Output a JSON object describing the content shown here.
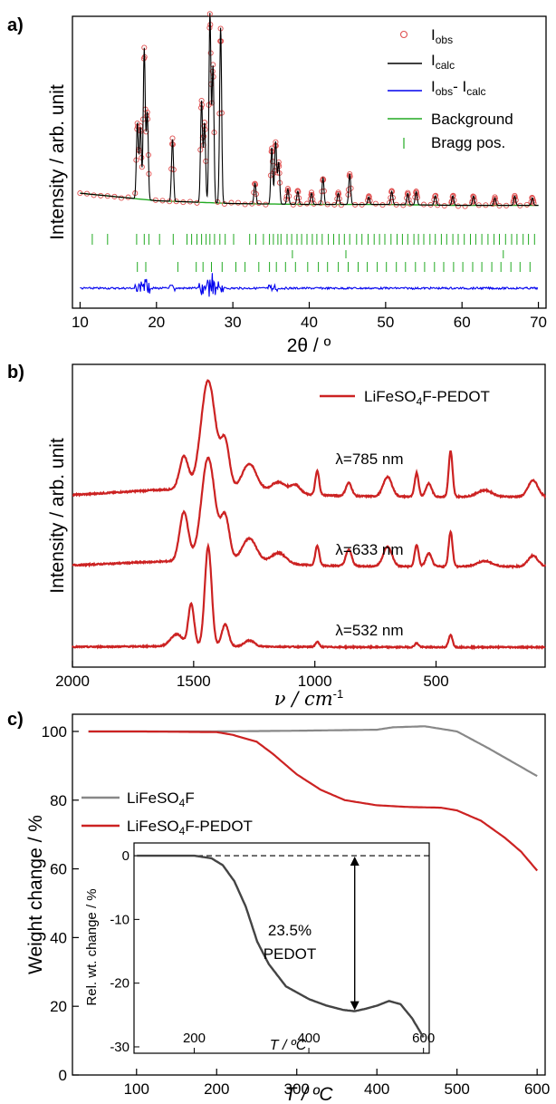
{
  "chart_data": [
    {
      "panel": "a)",
      "type": "line",
      "xlabel": "2θ / º",
      "ylabel": "Intensity / arb. unit",
      "xlim": [
        9,
        71
      ],
      "x_ticks": [
        10,
        20,
        30,
        40,
        50,
        60,
        70
      ],
      "legend_position": "top-right",
      "legend": [
        {
          "name": "I",
          "sub": "obs",
          "marker": "open-circle",
          "color": "#e05050"
        },
        {
          "name": "I",
          "sub": "calc",
          "marker": "line",
          "color": "#000000"
        },
        {
          "name": "I",
          "sub": "obs",
          "mid": "- I",
          "sub2": "calc",
          "marker": "line",
          "color": "#0000ee"
        },
        {
          "name": "Background",
          "marker": "line",
          "color": "#22aa22"
        },
        {
          "name": "Bragg pos.",
          "marker": "tick",
          "color": "#22aa22"
        }
      ],
      "peaks": [
        {
          "x": 17.5,
          "h": 0.4
        },
        {
          "x": 17.9,
          "h": 0.38
        },
        {
          "x": 18.4,
          "h": 0.8
        },
        {
          "x": 18.8,
          "h": 0.46
        },
        {
          "x": 22.1,
          "h": 0.33
        },
        {
          "x": 25.9,
          "h": 0.54
        },
        {
          "x": 26.3,
          "h": 0.42
        },
        {
          "x": 27.0,
          "h": 1.0
        },
        {
          "x": 27.4,
          "h": 0.72
        },
        {
          "x": 28.4,
          "h": 0.93
        },
        {
          "x": 32.9,
          "h": 0.11
        },
        {
          "x": 35.1,
          "h": 0.3
        },
        {
          "x": 35.6,
          "h": 0.33
        },
        {
          "x": 36.0,
          "h": 0.22
        },
        {
          "x": 37.2,
          "h": 0.08
        },
        {
          "x": 38.5,
          "h": 0.07
        },
        {
          "x": 40.3,
          "h": 0.06
        },
        {
          "x": 41.8,
          "h": 0.14
        },
        {
          "x": 43.8,
          "h": 0.06
        },
        {
          "x": 45.3,
          "h": 0.16
        },
        {
          "x": 47.8,
          "h": 0.04
        },
        {
          "x": 50.8,
          "h": 0.07
        },
        {
          "x": 52.9,
          "h": 0.06
        },
        {
          "x": 54.0,
          "h": 0.07
        },
        {
          "x": 56.5,
          "h": 0.05
        },
        {
          "x": 58.8,
          "h": 0.05
        },
        {
          "x": 61.5,
          "h": 0.05
        },
        {
          "x": 64.3,
          "h": 0.04
        },
        {
          "x": 66.9,
          "h": 0.05
        },
        {
          "x": 69.2,
          "h": 0.04
        }
      ],
      "background": [
        [
          10,
          0.11
        ],
        [
          20,
          0.07
        ],
        [
          30,
          0.055
        ],
        [
          40,
          0.05
        ],
        [
          50,
          0.05
        ],
        [
          60,
          0.045
        ],
        [
          70,
          0.045
        ]
      ],
      "bragg_rows": [
        [
          11.6,
          13.6,
          17.4,
          18.4,
          19.0,
          20.4,
          22.2,
          24.0,
          24.6,
          25.3,
          25.9,
          26.5,
          27.0,
          27.6,
          28.3,
          29.0,
          30.1,
          32.2,
          33.0,
          34.0,
          34.8,
          35.3,
          35.9,
          36.3,
          37.1,
          37.7,
          38.4,
          39.0,
          39.7,
          40.4,
          41.0,
          41.7,
          42.5,
          43.2,
          43.9,
          44.6,
          45.3,
          46.2,
          46.9,
          47.7,
          48.5,
          49.2,
          49.9,
          50.7,
          51.5,
          52.2,
          52.9,
          53.7,
          54.3,
          55.0,
          55.8,
          56.5,
          57.3,
          58.0,
          58.8,
          59.5,
          60.3,
          61.1,
          61.8,
          62.6,
          63.4,
          64.2,
          64.9,
          65.7,
          66.5,
          67.2,
          68.0,
          68.7,
          69.5
        ],
        [
          37.8,
          44.8,
          65.4
        ],
        [
          17.5,
          18.6,
          22.8,
          25.2,
          26.1,
          27.2,
          28.6,
          30.4,
          31.6,
          33.4,
          34.8,
          35.7,
          36.9,
          38.2,
          39.8,
          41.2,
          42.4,
          43.8,
          45.1,
          46.4,
          47.6,
          48.9,
          50.1,
          51.4,
          52.6,
          53.9,
          55.1,
          56.4,
          57.6,
          58.9,
          60.1,
          61.4,
          62.6,
          63.9,
          65.1,
          66.4,
          67.6,
          68.9
        ]
      ]
    },
    {
      "panel": "b)",
      "type": "line",
      "xlabel": "ν / cm",
      "xlabel_sup": "-1",
      "ylabel": "Intensity / arb. unit",
      "xlim": [
        2000,
        50
      ],
      "x_ticks": [
        2000,
        1500,
        1000,
        500
      ],
      "legend_position": "top-right",
      "legend": [
        {
          "name": "LiFeSO",
          "sub": "4",
          "suffix": "F-PEDOT",
          "color": "#cc2222"
        }
      ],
      "series": [
        {
          "name": "λ=785 nm",
          "baseline": 0.14,
          "scale": 1.0,
          "peaks": [
            [
              1540,
              0.3,
              18
            ],
            [
              1440,
              1.0,
              30
            ],
            [
              1370,
              0.42,
              18
            ],
            [
              1270,
              0.25,
              30
            ],
            [
              1150,
              0.1,
              30
            ],
            [
              1080,
              0.08,
              20
            ],
            [
              990,
              0.22,
              8
            ],
            [
              860,
              0.12,
              12
            ],
            [
              700,
              0.18,
              18
            ],
            [
              580,
              0.22,
              8
            ],
            [
              530,
              0.12,
              12
            ],
            [
              440,
              0.42,
              8
            ],
            [
              300,
              0.06,
              30
            ],
            [
              100,
              0.15,
              20
            ]
          ]
        },
        {
          "name": "λ=633 nm",
          "baseline": 0.1,
          "scale": 1.0,
          "peaks": [
            [
              1540,
              0.45,
              18
            ],
            [
              1440,
              0.95,
              28
            ],
            [
              1370,
              0.4,
              18
            ],
            [
              1270,
              0.22,
              30
            ],
            [
              1150,
              0.1,
              30
            ],
            [
              990,
              0.18,
              8
            ],
            [
              860,
              0.15,
              12
            ],
            [
              700,
              0.18,
              18
            ],
            [
              580,
              0.2,
              8
            ],
            [
              530,
              0.12,
              12
            ],
            [
              440,
              0.32,
              8
            ],
            [
              300,
              0.05,
              30
            ],
            [
              100,
              0.1,
              20
            ]
          ]
        },
        {
          "name": "λ=532 nm",
          "baseline": 0.02,
          "scale": 1.0,
          "peaks": [
            [
              1570,
              0.12,
              25
            ],
            [
              1510,
              0.42,
              12
            ],
            [
              1440,
              1.0,
              14
            ],
            [
              1370,
              0.22,
              14
            ],
            [
              1270,
              0.06,
              20
            ],
            [
              990,
              0.05,
              8
            ],
            [
              580,
              0.04,
              8
            ],
            [
              440,
              0.12,
              8
            ]
          ]
        }
      ]
    },
    {
      "panel": "c)",
      "type": "line",
      "xlabel": "T / ºC",
      "ylabel": "Weight change / %",
      "xlim": [
        20,
        610
      ],
      "ylim": [
        0,
        105
      ],
      "x_ticks": [
        100,
        200,
        300,
        400,
        500,
        600
      ],
      "y_ticks": [
        0,
        20,
        40,
        60,
        80,
        100
      ],
      "series": [
        {
          "name": "LiFeSO",
          "sub": "4",
          "suffix": "F",
          "color": "#888888",
          "x": [
            40,
            100,
            200,
            300,
            400,
            420,
            460,
            500,
            540,
            570,
            600
          ],
          "y": [
            100,
            100,
            100,
            100.2,
            100.5,
            101.2,
            101.5,
            100,
            95,
            91,
            87
          ]
        },
        {
          "name": "LiFeSO",
          "sub": "4",
          "suffix": "F-PEDOT",
          "color": "#cc2222",
          "x": [
            40,
            100,
            200,
            220,
            250,
            270,
            300,
            330,
            360,
            400,
            440,
            480,
            500,
            530,
            560,
            580,
            600
          ],
          "y": [
            100,
            100,
            99.8,
            99.0,
            97.0,
            93.5,
            87.5,
            83.0,
            80.0,
            78.5,
            78.0,
            77.8,
            77.0,
            74.0,
            69.0,
            65.0,
            59.5
          ]
        }
      ],
      "inset": {
        "xlabel": "T / ºC",
        "ylabel": "Rel. wt. change / %",
        "xlim": [
          95,
          610
        ],
        "ylim": [
          -31,
          2
        ],
        "x_ticks": [
          200,
          400,
          600
        ],
        "y_ticks": [
          0,
          -10,
          -20,
          -30
        ],
        "y_tick_labels": [
          "0",
          "-10",
          "-20",
          "-30"
        ],
        "annotation": [
          "23.5%",
          "PEDOT"
        ],
        "series": [
          {
            "x": [
              100,
              150,
              200,
              230,
              250,
              270,
              290,
              310,
              330,
              360,
              400,
              430,
              460,
              480,
              500,
              520,
              540,
              560,
              580,
              600
            ],
            "y": [
              0,
              0,
              0,
              -0.4,
              -1.5,
              -4,
              -8,
              -13.5,
              -17,
              -20.5,
              -22.5,
              -23.5,
              -24.2,
              -24.4,
              -24.0,
              -23.5,
              -22.8,
              -23.3,
              -25.5,
              -28.5
            ]
          }
        ]
      }
    }
  ]
}
